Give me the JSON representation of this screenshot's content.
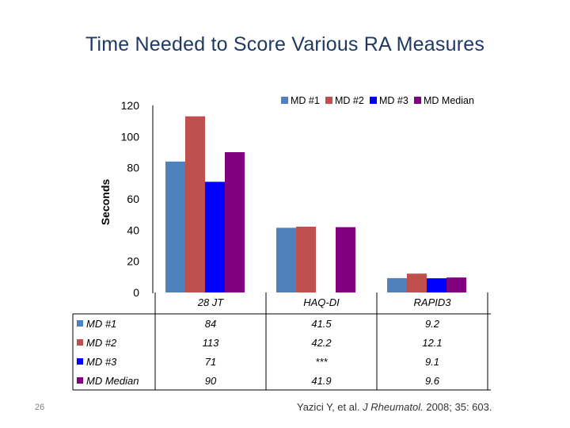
{
  "slide": {
    "title": "Time Needed to Score Various RA Measures",
    "number": "26",
    "citation": {
      "authors": "Yazici Y, et al.",
      "journal": "J Rheumatol.",
      "details": "2008; 35: 603."
    }
  },
  "chart_data": {
    "type": "bar",
    "title": "",
    "ylabel": "Seconds",
    "xlabel": "",
    "ylim": [
      0,
      120
    ],
    "yticks": [
      "0",
      "20",
      "40",
      "60",
      "80",
      "100",
      "120"
    ],
    "categories": [
      "28 JT",
      "HAQ-DI",
      "RAPID3"
    ],
    "legend_position": "top-right",
    "series": [
      {
        "name": "MD #1",
        "color": "#4f81bd",
        "values": [
          84,
          41.5,
          9.2
        ],
        "labels": [
          "84",
          "41.5",
          "9.2"
        ]
      },
      {
        "name": "MD #2",
        "color": "#c0504d",
        "values": [
          113,
          42.2,
          12.1
        ],
        "labels": [
          "113",
          "42.2",
          "12.1"
        ]
      },
      {
        "name": "MD #3",
        "color": "#0000ff",
        "values": [
          71,
          null,
          9.1
        ],
        "labels": [
          "71",
          "***",
          "9.1"
        ]
      },
      {
        "name": "MD Median",
        "color": "#800080",
        "values": [
          90,
          41.9,
          9.6
        ],
        "labels": [
          "90",
          "41.9",
          "9.6"
        ]
      }
    ]
  }
}
